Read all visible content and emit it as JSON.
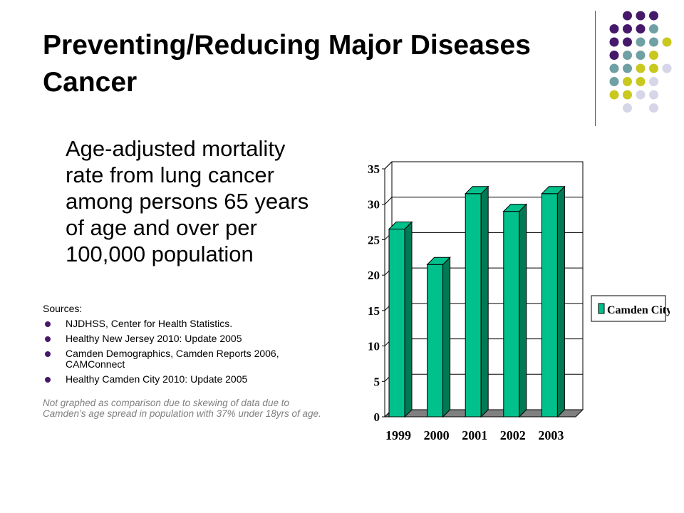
{
  "slide": {
    "title_line1": "Preventing/Reducing Major Diseases",
    "title_line2": "Cancer",
    "description": "Age-adjusted mortality rate from lung cancer among persons 65 years of age and over per 100,000 population",
    "sources_label": "Sources:",
    "sources": [
      "NJDHSS, Center for Health Statistics.",
      "Healthy New Jersey 2010:  Update 2005",
      "Camden Demographics, Camden Reports 2006, CAMConnect",
      "Healthy Camden City 2010:  Update 2005"
    ],
    "note": "Not graphed as comparison due to skewing of data due to Camden’s  age spread in population  with 37% under  18yrs of age."
  },
  "colors": {
    "purple": "#46196b",
    "teal": "#6fa0a3",
    "olive": "#c8c81e",
    "lavender": "#d6d6e8",
    "bar_front": "#00c08b",
    "bar_side": "#007a55",
    "floor": "#808080"
  },
  "chart_data": {
    "type": "bar",
    "categories": [
      "1999",
      "2000",
      "2001",
      "2002",
      "2003"
    ],
    "series": [
      {
        "name": "Camden City",
        "values": [
          26.5,
          21.5,
          31.5,
          29,
          31.5
        ]
      }
    ],
    "ylim": [
      0,
      35
    ],
    "yticks": [
      0,
      5,
      10,
      15,
      20,
      25,
      30,
      35
    ],
    "grid": true,
    "legend": "right",
    "title": "",
    "xlabel": "",
    "ylabel": ""
  }
}
